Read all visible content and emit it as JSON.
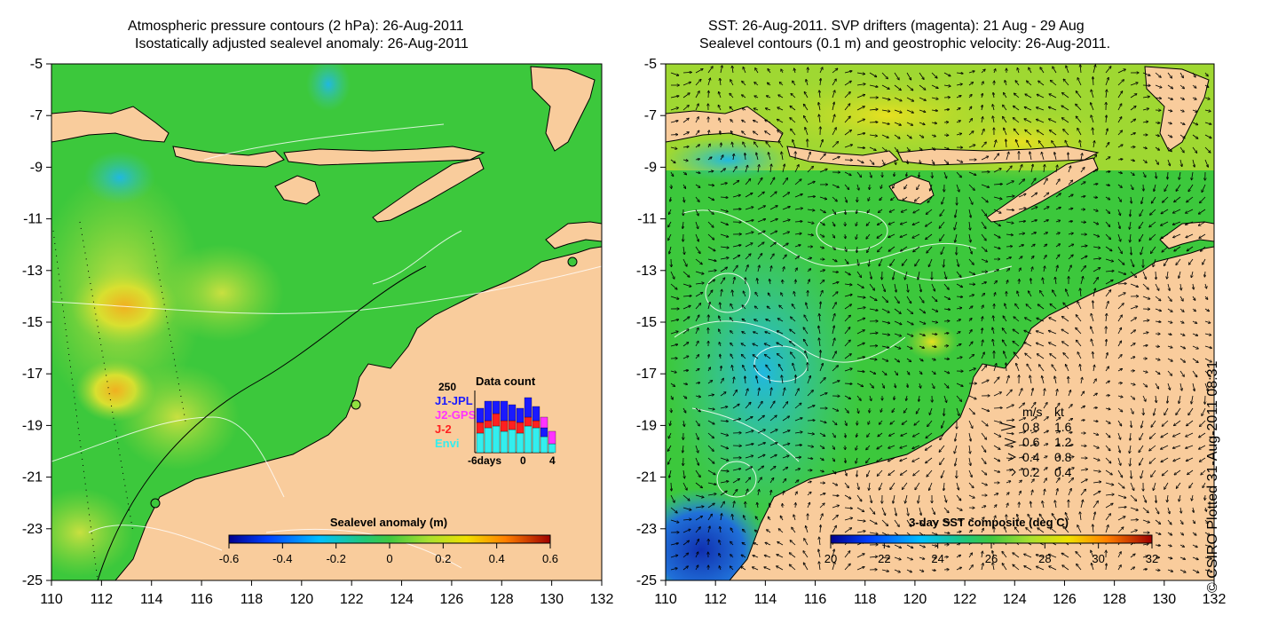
{
  "left_panel": {
    "title_line1": "Atmospheric pressure contours (2 hPa): 26-Aug-2011",
    "title_line2": "Isostatically adjusted sealevel anomaly: 26-Aug-2011",
    "y_ticks": [
      "-5",
      "-7",
      "-9",
      "-11",
      "-13",
      "-15",
      "-17",
      "-19",
      "-21",
      "-23",
      "-25"
    ],
    "x_ticks": [
      "110",
      "112",
      "114",
      "116",
      "118",
      "120",
      "122",
      "124",
      "126",
      "128",
      "130",
      "132"
    ],
    "colorbar": {
      "label": "Sealevel anomaly (m)",
      "ticks": [
        "-0.6",
        "-0.4",
        "-0.2",
        "0",
        "0.2",
        "0.4",
        "0.6"
      ]
    },
    "data_count": {
      "title": "Data count",
      "ymax_label": "250",
      "legend": [
        {
          "name": "J1-JPL",
          "color": "#1a1aff"
        },
        {
          "name": "J2-GPS",
          "color": "#ff33ff"
        },
        {
          "name": "J-2",
          "color": "#ff2020"
        },
        {
          "name": "Envi",
          "color": "#33eeee"
        }
      ],
      "x_labels": [
        "-6days",
        "0",
        "4"
      ]
    }
  },
  "right_panel": {
    "title_line1": "SST: 26-Aug-2011. SVP drifters (magenta): 21 Aug - 29 Aug",
    "title_line2": "Sealevel contours (0.1 m) and geostrophic velocity: 26-Aug-2011.",
    "y_ticks": [
      "-5",
      "-7",
      "-9",
      "-11",
      "-13",
      "-15",
      "-17",
      "-19",
      "-21",
      "-23",
      "-25"
    ],
    "x_ticks": [
      "110",
      "112",
      "114",
      "116",
      "118",
      "120",
      "122",
      "124",
      "126",
      "128",
      "130",
      "132"
    ],
    "colorbar": {
      "label": "3-day SST composite (deg C)",
      "ticks": [
        "20",
        "22",
        "24",
        "26",
        "28",
        "30",
        "32"
      ]
    },
    "velocity_legend": {
      "header_ms": "m/s",
      "header_kt": "kt",
      "rows": [
        {
          "ms": "0.8",
          "kt": "1.6"
        },
        {
          "ms": "0.6",
          "kt": "1.2"
        },
        {
          "ms": "0.4",
          "kt": "0.8"
        },
        {
          "ms": "0.2",
          "kt": "0.4"
        }
      ]
    }
  },
  "copyright": "© CSIRO Plotted 31-Aug-2011 08:31",
  "colors": {
    "land": "#f9cc9c",
    "ocean_base": "#3cc83c",
    "coastline": "#000000",
    "contour": "#ffffff"
  }
}
